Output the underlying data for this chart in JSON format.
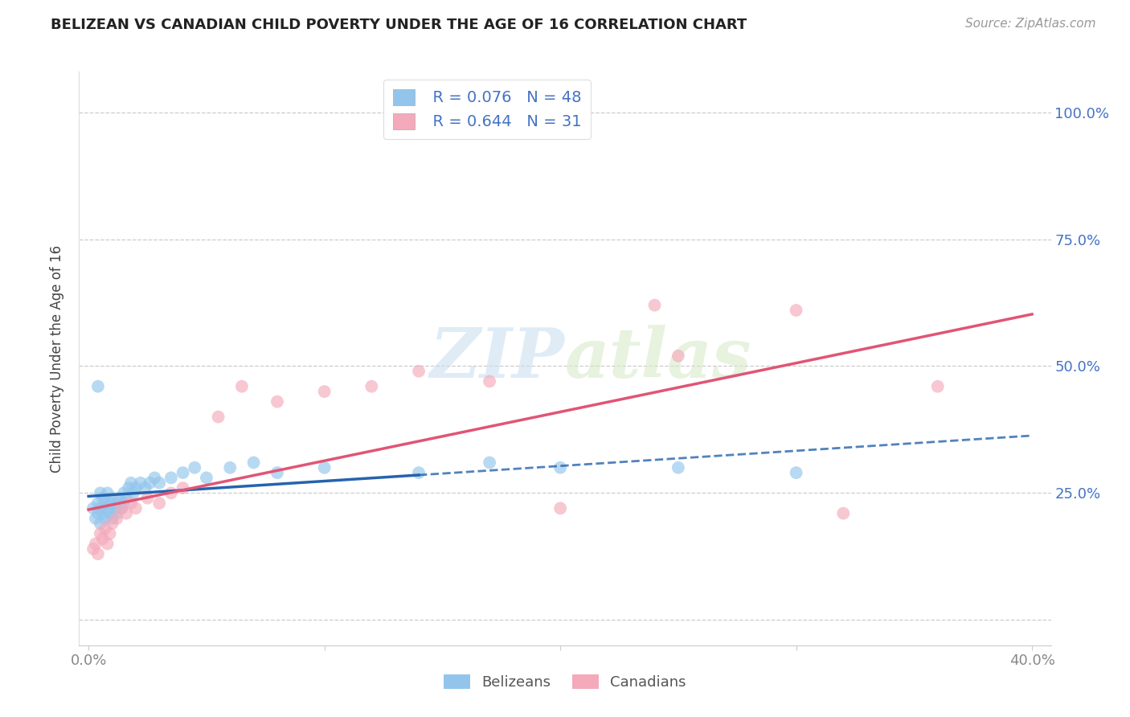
{
  "title": "BELIZEAN VS CANADIAN CHILD POVERTY UNDER THE AGE OF 16 CORRELATION CHART",
  "source": "Source: ZipAtlas.com",
  "ylabel": "Child Poverty Under the Age of 16",
  "xlim": [
    -0.004,
    0.408
  ],
  "ylim": [
    -0.05,
    1.08
  ],
  "belizean_color": "#93C5EC",
  "canadian_color": "#F4AABB",
  "belizean_line_color": "#2563AE",
  "canadian_line_color": "#E05575",
  "r_belizean": 0.076,
  "n_belizean": 48,
  "r_canadian": 0.644,
  "n_canadian": 31,
  "watermark_line1": "ZIP",
  "watermark_line2": "atlas",
  "legend_label_belizeans": "Belizeans",
  "legend_label_canadians": "Canadians",
  "grid_color": "#CCCCCC",
  "tick_color_y": "#4472C4",
  "tick_color_x": "#888888",
  "title_color": "#222222",
  "source_color": "#999999",
  "ylabel_color": "#444444",
  "legend_r_n_color": "#4472C4",
  "y_tick_positions": [
    0.0,
    0.25,
    0.5,
    0.75,
    1.0
  ],
  "y_tick_labels_right": [
    "",
    "25.0%",
    "50.0%",
    "75.0%",
    "100.0%"
  ],
  "x_tick_positions": [
    0.0,
    0.1,
    0.2,
    0.3,
    0.4
  ],
  "x_tick_labels": [
    "0.0%",
    "",
    "",
    "",
    "40.0%"
  ],
  "bel_x": [
    0.002,
    0.003,
    0.004,
    0.004,
    0.005,
    0.005,
    0.005,
    0.006,
    0.006,
    0.007,
    0.007,
    0.008,
    0.008,
    0.009,
    0.009,
    0.01,
    0.01,
    0.011,
    0.012,
    0.012,
    0.013,
    0.014,
    0.015,
    0.015,
    0.016,
    0.017,
    0.018,
    0.019,
    0.02,
    0.022,
    0.024,
    0.026,
    0.028,
    0.03,
    0.035,
    0.04,
    0.045,
    0.05,
    0.06,
    0.07,
    0.08,
    0.1,
    0.14,
    0.17,
    0.2,
    0.25,
    0.3,
    0.004
  ],
  "bel_y": [
    0.22,
    0.2,
    0.21,
    0.23,
    0.25,
    0.22,
    0.19,
    0.24,
    0.21,
    0.23,
    0.2,
    0.22,
    0.25,
    0.21,
    0.23,
    0.24,
    0.2,
    0.22,
    0.23,
    0.21,
    0.24,
    0.22,
    0.25,
    0.23,
    0.24,
    0.26,
    0.27,
    0.25,
    0.26,
    0.27,
    0.26,
    0.27,
    0.28,
    0.27,
    0.28,
    0.29,
    0.3,
    0.28,
    0.3,
    0.31,
    0.29,
    0.3,
    0.29,
    0.31,
    0.3,
    0.3,
    0.29,
    0.46
  ],
  "can_x": [
    0.002,
    0.003,
    0.004,
    0.005,
    0.006,
    0.007,
    0.008,
    0.009,
    0.01,
    0.012,
    0.014,
    0.016,
    0.018,
    0.02,
    0.025,
    0.03,
    0.035,
    0.04,
    0.055,
    0.065,
    0.08,
    0.1,
    0.12,
    0.14,
    0.17,
    0.2,
    0.25,
    0.3,
    0.32,
    0.36,
    0.24
  ],
  "can_y": [
    0.14,
    0.15,
    0.13,
    0.17,
    0.16,
    0.18,
    0.15,
    0.17,
    0.19,
    0.2,
    0.22,
    0.21,
    0.23,
    0.22,
    0.24,
    0.23,
    0.25,
    0.26,
    0.4,
    0.46,
    0.43,
    0.45,
    0.46,
    0.49,
    0.47,
    0.22,
    0.52,
    0.61,
    0.21,
    0.46,
    0.62
  ],
  "bel_line_x0": 0.0,
  "bel_line_x1": 0.15,
  "can_line_x0": 0.001,
  "can_line_x1": 0.4
}
